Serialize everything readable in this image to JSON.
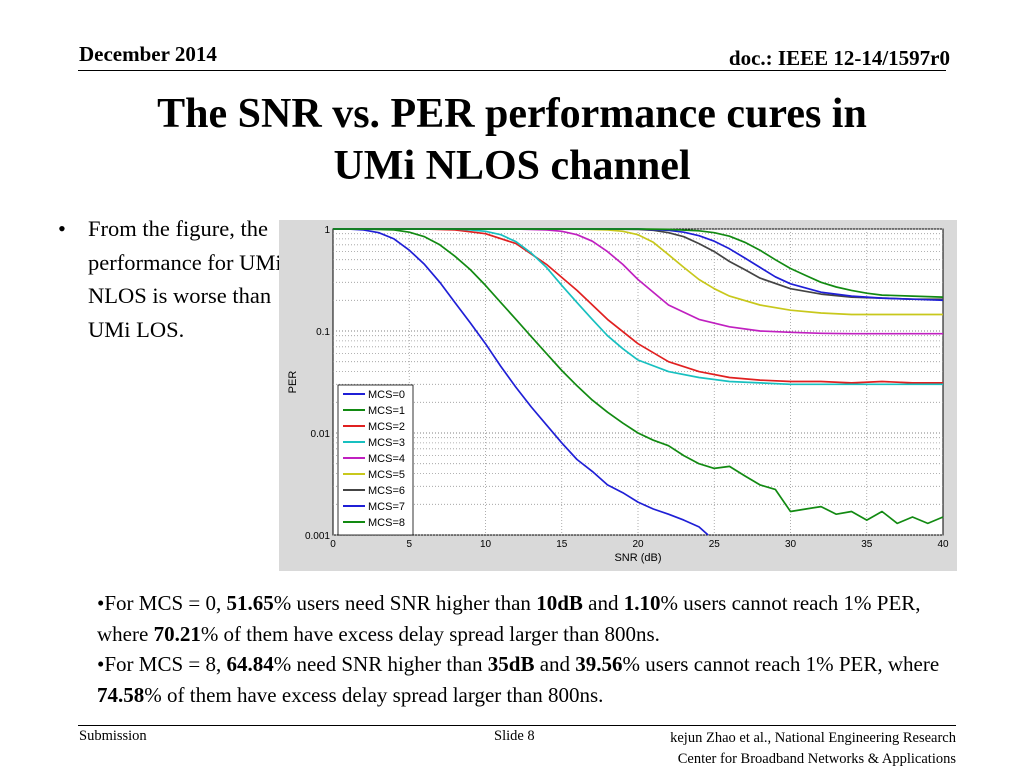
{
  "header": {
    "date": "December 2014",
    "doc": "doc.: IEEE 12-14/1597r0"
  },
  "title": {
    "line1": "The SNR vs. PER performance cures in",
    "line2": "UMi NLOS channel"
  },
  "bullet": {
    "marker": "•",
    "text": "From the figure, the performance for UMi NLOS is worse than UMi LOS."
  },
  "notes": [
    {
      "segments": [
        {
          "t": "•For MCS = 0, ",
          "b": false
        },
        {
          "t": "51.65",
          "b": true
        },
        {
          "t": "% users need SNR higher than ",
          "b": false
        },
        {
          "t": "10dB",
          "b": true
        },
        {
          "t": " and ",
          "b": false
        },
        {
          "t": "1.10",
          "b": true
        },
        {
          "t": "% users cannot reach 1% PER, where ",
          "b": false
        },
        {
          "t": "70.21",
          "b": true
        },
        {
          "t": "% of them have excess delay spread larger than 800ns.",
          "b": false
        }
      ]
    },
    {
      "segments": [
        {
          "t": "•For MCS = 8, ",
          "b": false
        },
        {
          "t": "64.84",
          "b": true
        },
        {
          "t": "% need SNR higher than ",
          "b": false
        },
        {
          "t": "35dB",
          "b": true
        },
        {
          "t": " and ",
          "b": false
        },
        {
          "t": "39.56",
          "b": true
        },
        {
          "t": "% users cannot reach 1% PER, where ",
          "b": false
        },
        {
          "t": "74.58",
          "b": true
        },
        {
          "t": "% of them have excess delay spread larger than 800ns.",
          "b": false
        }
      ]
    }
  ],
  "footer": {
    "left": "Submission",
    "slide": "Slide 8",
    "author_line1": "kejun Zhao et al., National Engineering Research",
    "author_line2": "Center for Broadband Networks & Applications"
  },
  "chart_data": {
    "type": "line",
    "xlabel": "SNR (dB)",
    "ylabel": "PER",
    "x_scale": "linear",
    "y_scale": "log",
    "xlim": [
      0,
      40
    ],
    "ylim": [
      0.001,
      1
    ],
    "xticks": [
      0,
      5,
      10,
      15,
      20,
      25,
      30,
      35,
      40
    ],
    "yticks": [
      {
        "v": 0.001,
        "label": "0.001"
      },
      {
        "v": 0.01,
        "label": "0.01"
      },
      {
        "v": 0.1,
        "label": "0.1"
      },
      {
        "v": 1,
        "label": "1"
      }
    ],
    "grid": true,
    "legend_position": "bottom-left",
    "series": [
      {
        "name": "MCS=0",
        "color": "#1f1fd6",
        "x": [
          0,
          1,
          2,
          3,
          4,
          5,
          6,
          7,
          8,
          9,
          10,
          11,
          12,
          13,
          14,
          15,
          16,
          17,
          18,
          19,
          20,
          21,
          22,
          23,
          24,
          24.6
        ],
        "y": [
          1,
          1,
          0.98,
          0.92,
          0.8,
          0.62,
          0.45,
          0.3,
          0.19,
          0.12,
          0.075,
          0.045,
          0.028,
          0.018,
          0.012,
          0.008,
          0.0055,
          0.0042,
          0.0031,
          0.0026,
          0.0021,
          0.0018,
          0.0016,
          0.0014,
          0.0012,
          0.001
        ]
      },
      {
        "name": "MCS=1",
        "color": "#128a12",
        "x": [
          0,
          2,
          4,
          5,
          6,
          7,
          8,
          9,
          10,
          11,
          12,
          13,
          14,
          15,
          16,
          17,
          18,
          19,
          20,
          21,
          22,
          23,
          24,
          25,
          26,
          27,
          28,
          29,
          30,
          31,
          32,
          33,
          34,
          35,
          36,
          37,
          38,
          39,
          40
        ],
        "y": [
          1,
          1,
          0.98,
          0.93,
          0.84,
          0.7,
          0.54,
          0.4,
          0.28,
          0.19,
          0.13,
          0.088,
          0.06,
          0.041,
          0.029,
          0.021,
          0.016,
          0.0125,
          0.01,
          0.0085,
          0.0075,
          0.006,
          0.005,
          0.0045,
          0.0047,
          0.0038,
          0.0031,
          0.0028,
          0.0017,
          0.0018,
          0.0019,
          0.0016,
          0.0017,
          0.0014,
          0.0017,
          0.0013,
          0.0015,
          0.0013,
          0.0015
        ]
      },
      {
        "name": "MCS=2",
        "color": "#e02020",
        "x": [
          0,
          2,
          4,
          6,
          8,
          10,
          12,
          14,
          16,
          18,
          20,
          22,
          24,
          26,
          28,
          30,
          32,
          34,
          36,
          38,
          40
        ],
        "y": [
          1,
          1,
          1,
          1,
          0.98,
          0.9,
          0.72,
          0.45,
          0.25,
          0.13,
          0.075,
          0.05,
          0.04,
          0.035,
          0.033,
          0.032,
          0.032,
          0.031,
          0.032,
          0.031,
          0.031
        ]
      },
      {
        "name": "MCS=3",
        "color": "#18c0c0",
        "x": [
          0,
          4,
          6,
          8,
          9,
          10,
          11,
          12,
          13,
          14,
          15,
          16,
          17,
          18,
          19,
          20,
          22,
          24,
          26,
          28,
          30,
          32,
          35,
          38,
          40
        ],
        "y": [
          1,
          1,
          1,
          1,
          0.98,
          0.95,
          0.88,
          0.75,
          0.58,
          0.42,
          0.28,
          0.19,
          0.13,
          0.09,
          0.067,
          0.052,
          0.04,
          0.035,
          0.032,
          0.031,
          0.03,
          0.03,
          0.03,
          0.03,
          0.03
        ]
      },
      {
        "name": "MCS=4",
        "color": "#c020c0",
        "x": [
          0,
          6,
          8,
          10,
          12,
          14,
          15,
          16,
          17,
          18,
          19,
          20,
          22,
          24,
          26,
          28,
          30,
          32,
          34,
          36,
          38,
          40
        ],
        "y": [
          1,
          1,
          1,
          1,
          1,
          0.98,
          0.95,
          0.88,
          0.76,
          0.6,
          0.45,
          0.32,
          0.18,
          0.13,
          0.11,
          0.1,
          0.097,
          0.095,
          0.094,
          0.094,
          0.094,
          0.094
        ]
      },
      {
        "name": "MCS=5",
        "color": "#c8c81c",
        "x": [
          0,
          10,
          14,
          16,
          18,
          19,
          20,
          21,
          22,
          23,
          24,
          25,
          26,
          28,
          30,
          32,
          34,
          36,
          38,
          40
        ],
        "y": [
          1,
          1,
          1,
          1,
          0.98,
          0.95,
          0.88,
          0.74,
          0.56,
          0.42,
          0.32,
          0.26,
          0.22,
          0.18,
          0.16,
          0.15,
          0.145,
          0.145,
          0.145,
          0.145
        ]
      },
      {
        "name": "MCS=6",
        "color": "#444444",
        "x": [
          0,
          12,
          16,
          18,
          20,
          21,
          22,
          23,
          24,
          25,
          26,
          27,
          28,
          30,
          32,
          34,
          36,
          38,
          40
        ],
        "y": [
          1,
          1,
          1,
          1,
          0.99,
          0.97,
          0.92,
          0.84,
          0.72,
          0.6,
          0.48,
          0.4,
          0.33,
          0.26,
          0.23,
          0.215,
          0.21,
          0.205,
          0.205
        ]
      },
      {
        "name": "MCS=7",
        "color": "#1f1fd6",
        "x": [
          0,
          14,
          18,
          20,
          22,
          23,
          24,
          25,
          26,
          27,
          28,
          29,
          30,
          32,
          34,
          36,
          38,
          40
        ],
        "y": [
          1,
          1,
          1,
          1,
          0.97,
          0.93,
          0.86,
          0.76,
          0.64,
          0.52,
          0.42,
          0.34,
          0.29,
          0.24,
          0.22,
          0.21,
          0.205,
          0.2
        ]
      },
      {
        "name": "MCS=8",
        "color": "#128a12",
        "x": [
          0,
          16,
          20,
          22,
          24,
          25,
          26,
          27,
          28,
          29,
          30,
          31,
          32,
          33,
          34,
          35,
          36,
          38,
          40
        ],
        "y": [
          1,
          1,
          1,
          0.99,
          0.96,
          0.92,
          0.85,
          0.74,
          0.62,
          0.5,
          0.41,
          0.35,
          0.3,
          0.27,
          0.25,
          0.235,
          0.225,
          0.22,
          0.215
        ]
      }
    ]
  }
}
